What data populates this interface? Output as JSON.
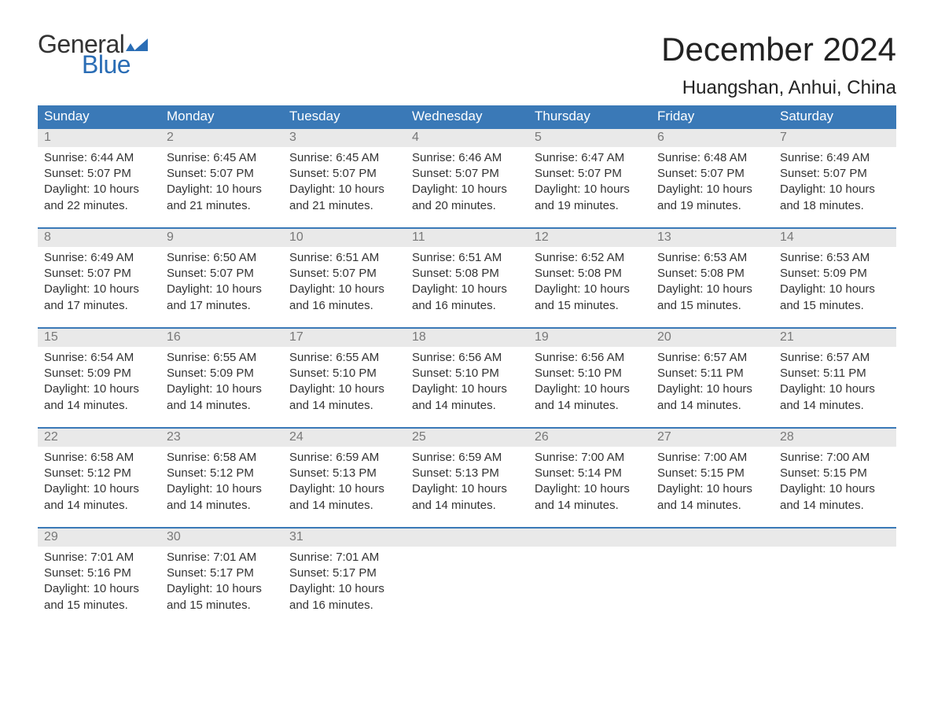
{
  "logo": {
    "text_top": "General",
    "text_bottom": "Blue",
    "text_top_color": "#333333",
    "text_bottom_color": "#2a6db5",
    "flag_color": "#2a6db5"
  },
  "title": "December 2024",
  "location": "Huangshan, Anhui, China",
  "colors": {
    "header_bg": "#3a79b7",
    "header_text": "#ffffff",
    "daynum_bg": "#e9e9e9",
    "daynum_text": "#787878",
    "body_text": "#333333",
    "row_border": "#3a79b7",
    "page_bg": "#ffffff"
  },
  "day_headers": [
    "Sunday",
    "Monday",
    "Tuesday",
    "Wednesday",
    "Thursday",
    "Friday",
    "Saturday"
  ],
  "weeks": [
    [
      {
        "n": "1",
        "sunrise": "6:44 AM",
        "sunset": "5:07 PM",
        "daylight": "10 hours and 22 minutes."
      },
      {
        "n": "2",
        "sunrise": "6:45 AM",
        "sunset": "5:07 PM",
        "daylight": "10 hours and 21 minutes."
      },
      {
        "n": "3",
        "sunrise": "6:45 AM",
        "sunset": "5:07 PM",
        "daylight": "10 hours and 21 minutes."
      },
      {
        "n": "4",
        "sunrise": "6:46 AM",
        "sunset": "5:07 PM",
        "daylight": "10 hours and 20 minutes."
      },
      {
        "n": "5",
        "sunrise": "6:47 AM",
        "sunset": "5:07 PM",
        "daylight": "10 hours and 19 minutes."
      },
      {
        "n": "6",
        "sunrise": "6:48 AM",
        "sunset": "5:07 PM",
        "daylight": "10 hours and 19 minutes."
      },
      {
        "n": "7",
        "sunrise": "6:49 AM",
        "sunset": "5:07 PM",
        "daylight": "10 hours and 18 minutes."
      }
    ],
    [
      {
        "n": "8",
        "sunrise": "6:49 AM",
        "sunset": "5:07 PM",
        "daylight": "10 hours and 17 minutes."
      },
      {
        "n": "9",
        "sunrise": "6:50 AM",
        "sunset": "5:07 PM",
        "daylight": "10 hours and 17 minutes."
      },
      {
        "n": "10",
        "sunrise": "6:51 AM",
        "sunset": "5:07 PM",
        "daylight": "10 hours and 16 minutes."
      },
      {
        "n": "11",
        "sunrise": "6:51 AM",
        "sunset": "5:08 PM",
        "daylight": "10 hours and 16 minutes."
      },
      {
        "n": "12",
        "sunrise": "6:52 AM",
        "sunset": "5:08 PM",
        "daylight": "10 hours and 15 minutes."
      },
      {
        "n": "13",
        "sunrise": "6:53 AM",
        "sunset": "5:08 PM",
        "daylight": "10 hours and 15 minutes."
      },
      {
        "n": "14",
        "sunrise": "6:53 AM",
        "sunset": "5:09 PM",
        "daylight": "10 hours and 15 minutes."
      }
    ],
    [
      {
        "n": "15",
        "sunrise": "6:54 AM",
        "sunset": "5:09 PM",
        "daylight": "10 hours and 14 minutes."
      },
      {
        "n": "16",
        "sunrise": "6:55 AM",
        "sunset": "5:09 PM",
        "daylight": "10 hours and 14 minutes."
      },
      {
        "n": "17",
        "sunrise": "6:55 AM",
        "sunset": "5:10 PM",
        "daylight": "10 hours and 14 minutes."
      },
      {
        "n": "18",
        "sunrise": "6:56 AM",
        "sunset": "5:10 PM",
        "daylight": "10 hours and 14 minutes."
      },
      {
        "n": "19",
        "sunrise": "6:56 AM",
        "sunset": "5:10 PM",
        "daylight": "10 hours and 14 minutes."
      },
      {
        "n": "20",
        "sunrise": "6:57 AM",
        "sunset": "5:11 PM",
        "daylight": "10 hours and 14 minutes."
      },
      {
        "n": "21",
        "sunrise": "6:57 AM",
        "sunset": "5:11 PM",
        "daylight": "10 hours and 14 minutes."
      }
    ],
    [
      {
        "n": "22",
        "sunrise": "6:58 AM",
        "sunset": "5:12 PM",
        "daylight": "10 hours and 14 minutes."
      },
      {
        "n": "23",
        "sunrise": "6:58 AM",
        "sunset": "5:12 PM",
        "daylight": "10 hours and 14 minutes."
      },
      {
        "n": "24",
        "sunrise": "6:59 AM",
        "sunset": "5:13 PM",
        "daylight": "10 hours and 14 minutes."
      },
      {
        "n": "25",
        "sunrise": "6:59 AM",
        "sunset": "5:13 PM",
        "daylight": "10 hours and 14 minutes."
      },
      {
        "n": "26",
        "sunrise": "7:00 AM",
        "sunset": "5:14 PM",
        "daylight": "10 hours and 14 minutes."
      },
      {
        "n": "27",
        "sunrise": "7:00 AM",
        "sunset": "5:15 PM",
        "daylight": "10 hours and 14 minutes."
      },
      {
        "n": "28",
        "sunrise": "7:00 AM",
        "sunset": "5:15 PM",
        "daylight": "10 hours and 14 minutes."
      }
    ],
    [
      {
        "n": "29",
        "sunrise": "7:01 AM",
        "sunset": "5:16 PM",
        "daylight": "10 hours and 15 minutes."
      },
      {
        "n": "30",
        "sunrise": "7:01 AM",
        "sunset": "5:17 PM",
        "daylight": "10 hours and 15 minutes."
      },
      {
        "n": "31",
        "sunrise": "7:01 AM",
        "sunset": "5:17 PM",
        "daylight": "10 hours and 16 minutes."
      },
      null,
      null,
      null,
      null
    ]
  ],
  "labels": {
    "sunrise": "Sunrise: ",
    "sunset": "Sunset: ",
    "daylight": "Daylight: "
  }
}
